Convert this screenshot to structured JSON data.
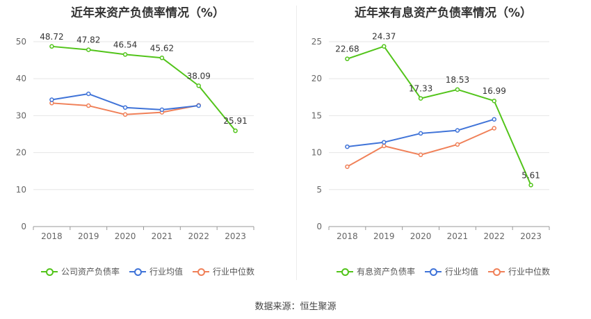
{
  "chart_data": [
    {
      "type": "line",
      "title": "近年来资产负债率情况（%）",
      "categories": [
        "2018",
        "2019",
        "2020",
        "2021",
        "2022",
        "2023"
      ],
      "ylim": [
        0,
        50
      ],
      "yticks": [
        0,
        10,
        20,
        30,
        40,
        50
      ],
      "grid": true,
      "legend_position": "bottom",
      "series": [
        {
          "name": "公司资产负债率",
          "color": "#52c41a",
          "values": [
            48.72,
            47.82,
            46.54,
            45.62,
            38.09,
            25.91
          ],
          "labels": [
            "48.72",
            "47.82",
            "46.54",
            "45.62",
            "38.09",
            "25.91"
          ]
        },
        {
          "name": "行业均值",
          "color": "#3f73d8",
          "values": [
            34.3,
            35.9,
            32.2,
            31.6,
            32.7,
            null
          ]
        },
        {
          "name": "行业中位数",
          "color": "#f08058",
          "values": [
            33.4,
            32.7,
            30.3,
            30.9,
            32.8,
            null
          ]
        }
      ]
    },
    {
      "type": "line",
      "title": "近年来有息资产负债率情况（%）",
      "categories": [
        "2018",
        "2019",
        "2020",
        "2021",
        "2022",
        "2023"
      ],
      "ylim": [
        0,
        25
      ],
      "yticks": [
        0,
        5,
        10,
        15,
        20,
        25
      ],
      "grid": true,
      "legend_position": "bottom",
      "series": [
        {
          "name": "有息资产负债率",
          "color": "#52c41a",
          "values": [
            22.68,
            24.37,
            17.33,
            18.53,
            16.99,
            5.61
          ],
          "labels": [
            "22.68",
            "24.37",
            "17.33",
            "18.53",
            "16.99",
            "5.61"
          ]
        },
        {
          "name": "行业均值",
          "color": "#3f73d8",
          "values": [
            10.8,
            11.4,
            12.6,
            13.0,
            14.5,
            null
          ]
        },
        {
          "name": "行业中位数",
          "color": "#f08058",
          "values": [
            8.1,
            10.9,
            9.7,
            11.1,
            13.3,
            null
          ]
        }
      ]
    }
  ],
  "footer": {
    "source": "数据来源：恒生聚源"
  }
}
